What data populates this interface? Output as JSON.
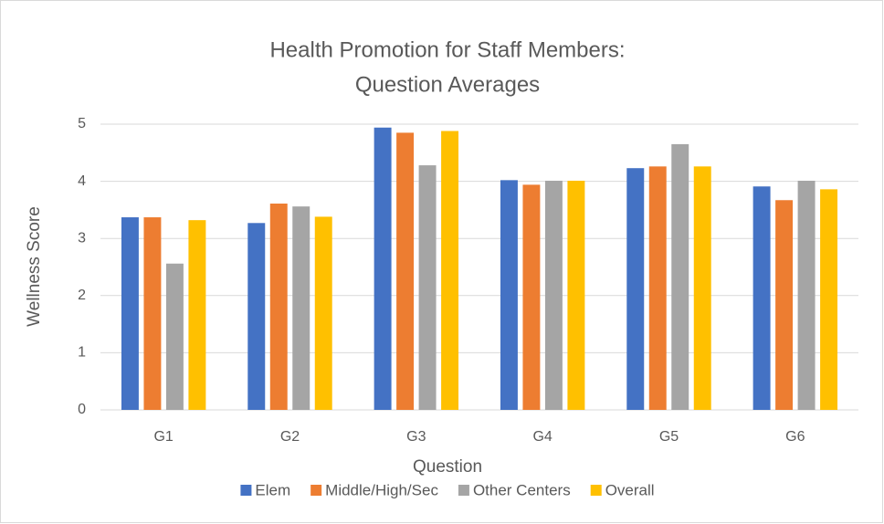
{
  "chart_data": {
    "type": "bar",
    "title": [
      "Health Promotion for Staff Members:",
      "Question Averages"
    ],
    "x_label": "Question",
    "y_label": "Wellness Score",
    "categories": [
      "G1",
      "G2",
      "G3",
      "G4",
      "G5",
      "G6"
    ],
    "series": [
      {
        "name": "Elem",
        "color": "#4472c4",
        "values": [
          3.37,
          3.27,
          4.94,
          4.02,
          4.23,
          3.91
        ]
      },
      {
        "name": "Middle/High/Sec",
        "color": "#ed7d31",
        "values": [
          3.37,
          3.61,
          4.85,
          3.94,
          4.26,
          3.67
        ]
      },
      {
        "name": "Other Centers",
        "color": "#a5a5a5",
        "values": [
          2.56,
          3.56,
          4.28,
          4.01,
          4.65,
          4.01
        ]
      },
      {
        "name": "Overall",
        "color": "#ffc000",
        "values": [
          3.32,
          3.38,
          4.88,
          4.01,
          4.26,
          3.86
        ]
      }
    ],
    "ylim": [
      0,
      5
    ],
    "yticks": [
      0,
      1,
      2,
      3,
      4,
      5
    ],
    "grid": true,
    "legend": "bottom"
  }
}
